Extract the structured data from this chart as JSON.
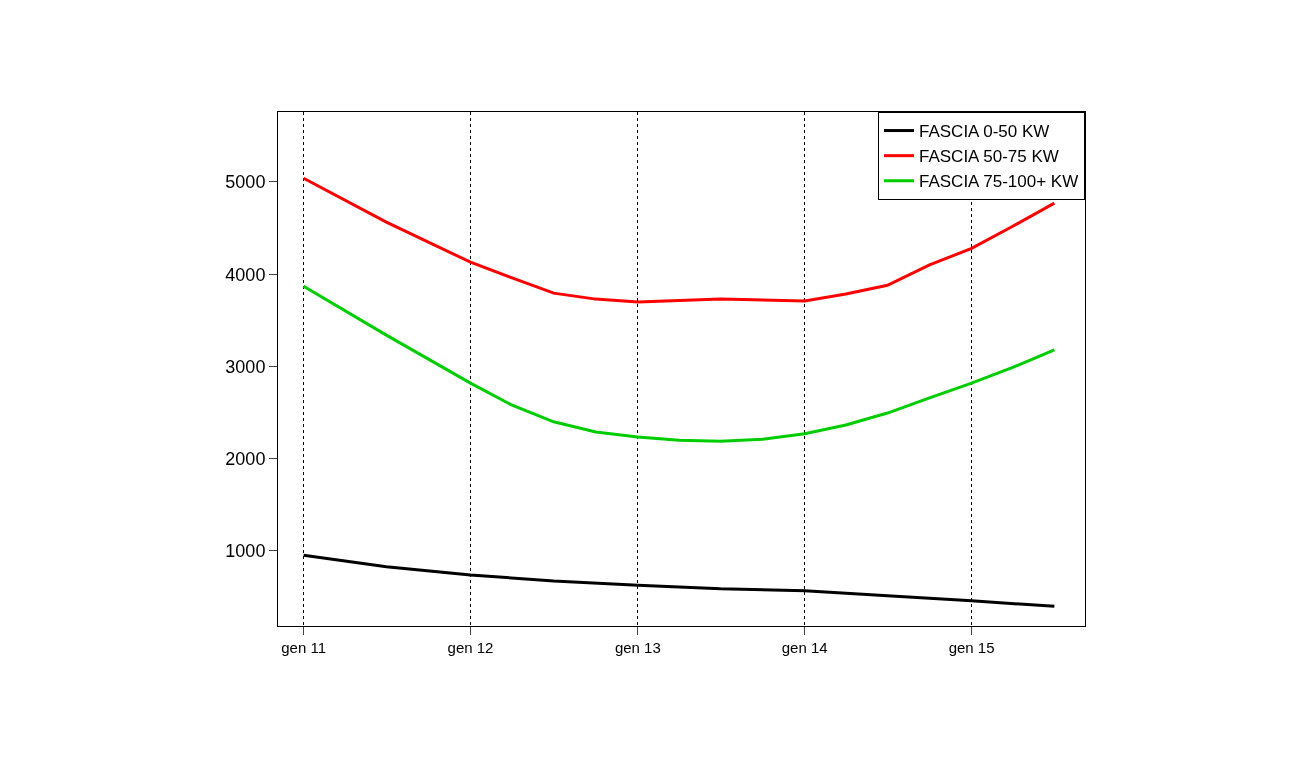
{
  "chart_data": {
    "type": "line",
    "xlim": [
      "2010-11-06",
      "2015-09-06"
    ],
    "ylim": [
      187,
      5758
    ],
    "xticks": [
      {
        "value": "2011-01",
        "label": "gen 11"
      },
      {
        "value": "2012-01",
        "label": "gen 12"
      },
      {
        "value": "2013-01",
        "label": "gen 13"
      },
      {
        "value": "2014-01",
        "label": "gen 14"
      },
      {
        "value": "2015-01",
        "label": "gen 15"
      }
    ],
    "yticks": [
      1000,
      2000,
      3000,
      4000,
      5000
    ],
    "grid": "x",
    "legend": "top right",
    "line_style": "solid",
    "marker": "none",
    "series": [
      {
        "name": "FASCIA 0-50 KW",
        "color": "#000000",
        "x": [
          "2011-01",
          "2011-07",
          "2012-01",
          "2012-07",
          "2013-01",
          "2013-07",
          "2014-01",
          "2014-07",
          "2015-01",
          "2015-07"
        ],
        "values": [
          955,
          830,
          740,
          675,
          630,
          590,
          570,
          515,
          460,
          400
        ]
      },
      {
        "name": "FASCIA 50-75 KW",
        "color": "#ff0000",
        "x": [
          "2011-01",
          "2011-07",
          "2012-01",
          "2012-04",
          "2012-07",
          "2012-10",
          "2013-01",
          "2013-07",
          "2014-01",
          "2014-04",
          "2014-07",
          "2014-10",
          "2015-01",
          "2015-04",
          "2015-07"
        ],
        "values": [
          5040,
          4565,
          4130,
          3960,
          3795,
          3730,
          3700,
          3730,
          3710,
          3785,
          3880,
          4100,
          4280,
          4520,
          4770
        ]
      },
      {
        "name": "FASCIA 75-100+ KW",
        "color": "#00cd00",
        "x": [
          "2011-01",
          "2011-07",
          "2012-01",
          "2012-04",
          "2012-07",
          "2012-10",
          "2013-01",
          "2013-04",
          "2013-07",
          "2013-10",
          "2014-01",
          "2014-04",
          "2014-07",
          "2014-10",
          "2015-01",
          "2015-04",
          "2015-07"
        ],
        "values": [
          3870,
          3340,
          2820,
          2580,
          2400,
          2290,
          2235,
          2200,
          2190,
          2210,
          2270,
          2365,
          2495,
          2660,
          2820,
          2990,
          3180
        ]
      }
    ]
  }
}
